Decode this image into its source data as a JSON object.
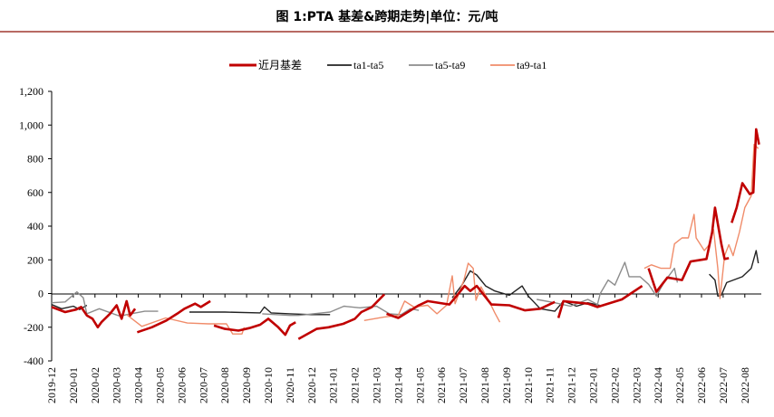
{
  "chart_data": {
    "type": "line",
    "title": "图 1:PTA 基差&跨期走势|单位：元/吨",
    "xlabel": "",
    "ylabel": "",
    "ylim": [
      -400,
      1200
    ],
    "yticks": [
      -400,
      -200,
      0,
      200,
      400,
      600,
      800,
      1000,
      1200
    ],
    "ytick_labels": [
      "-400",
      "-200",
      "0",
      "200",
      "400",
      "600",
      "800",
      "1,000",
      "1,200"
    ],
    "xtick_labels": [
      "2019-12",
      "2020-01",
      "2020-02",
      "2020-03",
      "2020-04",
      "2020-05",
      "2020-06",
      "2020-07",
      "2020-08",
      "2020-09",
      "2020-10",
      "2020-11",
      "2020-12",
      "2021-01",
      "2021-02",
      "2021-03",
      "2021-04",
      "2021-05",
      "2021-06",
      "2021-07",
      "2021-08",
      "2021-09",
      "2021-10",
      "2021-11",
      "2021-12",
      "2022-01",
      "2022-02",
      "2022-03",
      "2022-04",
      "2022-05",
      "2022-06",
      "2022-07",
      "2022-08"
    ],
    "grid": false,
    "legend_position": "top",
    "series": [
      {
        "name": "近月基差",
        "color": "#c00000",
        "width": 2.6,
        "points": [
          [
            "2019-12-01",
            -80
          ],
          [
            "2019-12-20",
            -110
          ],
          [
            "2020-01-05",
            -95
          ],
          [
            "2020-01-12",
            -80
          ],
          [
            "2020-01-20",
            -130
          ],
          [
            "2020-01-28",
            -150
          ],
          [
            "2020-02-05",
            -200
          ],
          [
            "2020-02-10",
            -170
          ],
          [
            "2020-02-22",
            -120
          ],
          [
            "2020-03-01",
            -70
          ],
          [
            "2020-03-08",
            -150
          ],
          [
            "2020-03-15",
            -45
          ],
          [
            "2020-03-20",
            -130
          ],
          [
            "2020-03-27",
            -90
          ],
          null,
          [
            "2020-03-30",
            -230
          ],
          [
            "2020-04-20",
            -200
          ],
          [
            "2020-05-10",
            -160
          ],
          [
            "2020-05-25",
            -120
          ],
          [
            "2020-06-05",
            -90
          ],
          [
            "2020-06-20",
            -60
          ],
          [
            "2020-06-28",
            -80
          ],
          [
            "2020-07-11",
            -45
          ],
          null,
          [
            "2020-07-16",
            -190
          ],
          [
            "2020-08-01",
            -210
          ],
          [
            "2020-08-20",
            -220
          ],
          [
            "2020-09-05",
            -205
          ],
          [
            "2020-09-20",
            -185
          ],
          [
            "2020-10-01",
            -150
          ],
          [
            "2020-10-15",
            -200
          ],
          [
            "2020-10-25",
            -245
          ],
          [
            "2020-11-01",
            -190
          ],
          [
            "2020-11-09",
            -170
          ],
          null,
          [
            "2020-11-13",
            -270
          ],
          [
            "2020-12-08",
            -210
          ],
          [
            "2020-12-25",
            -200
          ],
          [
            "2021-01-15",
            -180
          ],
          [
            "2021-02-01",
            -150
          ],
          [
            "2021-02-10",
            -110
          ],
          [
            "2021-02-25",
            -80
          ],
          [
            "2021-03-12",
            -5
          ],
          null,
          [
            "2021-03-15",
            -120
          ],
          [
            "2021-04-01",
            -145
          ],
          [
            "2021-04-30",
            -70
          ],
          [
            "2021-05-12",
            -45
          ],
          [
            "2021-06-12",
            -65
          ],
          [
            "2021-06-20",
            -25
          ],
          [
            "2021-07-03",
            45
          ],
          [
            "2021-07-11",
            15
          ],
          [
            "2021-07-20",
            45
          ],
          [
            "2021-08-10",
            -65
          ],
          [
            "2021-09-05",
            -70
          ],
          [
            "2021-09-27",
            -100
          ],
          [
            "2021-10-18",
            -90
          ],
          [
            "2021-11-08",
            -50
          ],
          null,
          [
            "2021-11-13",
            -145
          ],
          [
            "2021-11-20",
            -45
          ],
          [
            "2021-12-24",
            -60
          ],
          [
            "2022-01-07",
            -80
          ],
          [
            "2022-02-11",
            -35
          ],
          [
            "2022-03-09",
            45
          ],
          null,
          [
            "2022-03-18",
            150
          ],
          [
            "2022-03-29",
            10
          ],
          [
            "2022-04-14",
            95
          ],
          [
            "2022-05-04",
            80
          ],
          [
            "2022-05-16",
            190
          ],
          [
            "2022-06-08",
            205
          ],
          [
            "2022-06-16",
            365
          ],
          [
            "2022-06-20",
            510
          ],
          [
            "2022-06-29",
            295
          ],
          [
            "2022-07-03",
            205
          ],
          [
            "2022-07-09",
            210
          ],
          null,
          [
            "2022-07-13",
            420
          ],
          [
            "2022-07-20",
            510
          ],
          [
            "2022-07-28",
            655
          ],
          [
            "2022-08-08",
            590
          ],
          [
            "2022-08-13",
            600
          ],
          [
            "2022-08-17",
            975
          ],
          [
            "2022-08-21",
            885
          ]
        ]
      },
      {
        "name": "ta1-ta5",
        "color": "#222222",
        "width": 1.4,
        "points": [
          [
            "2019-12-01",
            -65
          ],
          [
            "2019-12-15",
            -90
          ],
          [
            "2020-01-01",
            -75
          ],
          [
            "2020-01-10",
            -95
          ],
          [
            "2020-01-20",
            -70
          ],
          null,
          [
            "2020-06-12",
            -110
          ],
          [
            "2020-08-01",
            -110
          ],
          [
            "2020-09-20",
            -115
          ],
          [
            "2020-09-26",
            -80
          ],
          [
            "2020-10-05",
            -115
          ],
          [
            "2020-11-01",
            -120
          ],
          [
            "2020-12-01",
            -125
          ],
          [
            "2020-12-27",
            -125
          ],
          null,
          [
            "2021-06-16",
            -25
          ],
          [
            "2021-06-29",
            45
          ],
          [
            "2021-07-11",
            135
          ],
          [
            "2021-07-20",
            110
          ],
          [
            "2021-08-02",
            45
          ],
          [
            "2021-08-15",
            15
          ],
          [
            "2021-09-05",
            -10
          ],
          [
            "2021-09-23",
            45
          ],
          [
            "2021-10-01",
            -15
          ],
          [
            "2021-10-18",
            -90
          ],
          [
            "2021-11-08",
            -105
          ],
          [
            "2021-11-20",
            -45
          ],
          [
            "2021-12-08",
            -75
          ],
          [
            "2021-12-24",
            -55
          ],
          [
            "2022-01-10",
            -70
          ],
          null,
          [
            "2022-06-12",
            115
          ],
          [
            "2022-06-20",
            80
          ],
          [
            "2022-06-24",
            -15
          ],
          [
            "2022-06-29",
            -10
          ],
          [
            "2022-07-06",
            65
          ],
          [
            "2022-07-28",
            100
          ],
          [
            "2022-08-10",
            150
          ],
          [
            "2022-08-17",
            255
          ],
          [
            "2022-08-20",
            180
          ]
        ]
      },
      {
        "name": "ta5-ta9",
        "color": "#8c8c8c",
        "width": 1.4,
        "points": [
          [
            "2019-12-01",
            -55
          ],
          [
            "2019-12-20",
            -50
          ],
          [
            "2020-01-06",
            10
          ],
          [
            "2020-01-15",
            -25
          ],
          [
            "2020-01-20",
            -120
          ],
          [
            "2020-02-07",
            -90
          ],
          [
            "2020-03-06",
            -135
          ],
          [
            "2020-03-15",
            -125
          ],
          [
            "2020-04-10",
            -105
          ],
          [
            "2020-04-29",
            -105
          ],
          null,
          [
            "2020-09-23",
            -120
          ],
          [
            "2020-11-01",
            -130
          ],
          [
            "2020-11-13",
            -130
          ],
          [
            "2020-12-27",
            -110
          ],
          [
            "2021-01-16",
            -75
          ],
          [
            "2021-02-08",
            -85
          ],
          [
            "2021-03-01",
            -75
          ],
          [
            "2021-03-19",
            -120
          ],
          [
            "2021-04-05",
            -125
          ],
          [
            "2021-04-18",
            -90
          ],
          [
            "2021-04-30",
            -100
          ],
          null,
          [
            "2021-10-13",
            -35
          ],
          [
            "2021-11-08",
            -55
          ],
          [
            "2021-11-30",
            -75
          ],
          [
            "2021-12-24",
            -35
          ],
          [
            "2022-01-07",
            -65
          ],
          [
            "2022-01-11",
            0
          ],
          [
            "2022-01-22",
            80
          ],
          [
            "2022-02-01",
            50
          ],
          [
            "2022-02-15",
            185
          ],
          [
            "2022-02-21",
            100
          ],
          [
            "2022-03-06",
            100
          ],
          [
            "2022-03-18",
            55
          ],
          [
            "2022-03-29",
            -15
          ],
          [
            "2022-04-09",
            65
          ],
          [
            "2022-04-24",
            150
          ],
          [
            "2022-04-28",
            65
          ]
        ]
      },
      {
        "name": "ta9-ta1",
        "color": "#f08c6a",
        "width": 1.4,
        "points": [
          [
            "2020-03-15",
            -125
          ],
          [
            "2020-04-06",
            -195
          ],
          [
            "2020-05-09",
            -145
          ],
          [
            "2020-06-09",
            -175
          ],
          [
            "2020-07-08",
            -180
          ],
          [
            "2020-08-03",
            -180
          ],
          [
            "2020-08-12",
            -240
          ],
          [
            "2020-08-25",
            -240
          ],
          [
            "2020-08-28",
            -200
          ],
          null,
          [
            "2021-02-14",
            -160
          ],
          [
            "2021-03-11",
            -140
          ],
          [
            "2021-04-01",
            -130
          ],
          [
            "2021-04-10",
            -45
          ],
          [
            "2021-04-23",
            -80
          ],
          [
            "2021-05-12",
            -70
          ],
          [
            "2021-05-25",
            -120
          ],
          [
            "2021-06-08",
            -70
          ],
          [
            "2021-06-16",
            105
          ],
          [
            "2021-06-20",
            -60
          ],
          [
            "2021-07-02",
            80
          ],
          [
            "2021-07-08",
            180
          ],
          [
            "2021-07-15",
            150
          ],
          [
            "2021-07-19",
            -40
          ],
          [
            "2021-07-26",
            40
          ],
          [
            "2021-08-08",
            -55
          ],
          [
            "2021-08-15",
            -115
          ],
          [
            "2021-08-22",
            -170
          ],
          null,
          [
            "2022-03-12",
            150
          ],
          [
            "2022-03-22",
            170
          ],
          [
            "2022-04-05",
            150
          ],
          [
            "2022-04-18",
            150
          ],
          [
            "2022-04-24",
            295
          ],
          [
            "2022-05-04",
            330
          ],
          [
            "2022-05-13",
            330
          ],
          [
            "2022-05-21",
            470
          ],
          [
            "2022-05-24",
            330
          ],
          [
            "2022-06-05",
            255
          ],
          [
            "2022-06-12",
            290
          ],
          [
            "2022-06-18",
            380
          ],
          [
            "2022-06-24",
            150
          ],
          [
            "2022-06-27",
            -30
          ],
          [
            "2022-07-03",
            225
          ],
          [
            "2022-07-09",
            290
          ],
          [
            "2022-07-15",
            225
          ],
          [
            "2022-07-24",
            365
          ],
          [
            "2022-08-01",
            510
          ],
          [
            "2022-08-10",
            580
          ],
          [
            "2022-08-14",
            885
          ],
          [
            "2022-08-20",
            860
          ]
        ]
      }
    ]
  }
}
